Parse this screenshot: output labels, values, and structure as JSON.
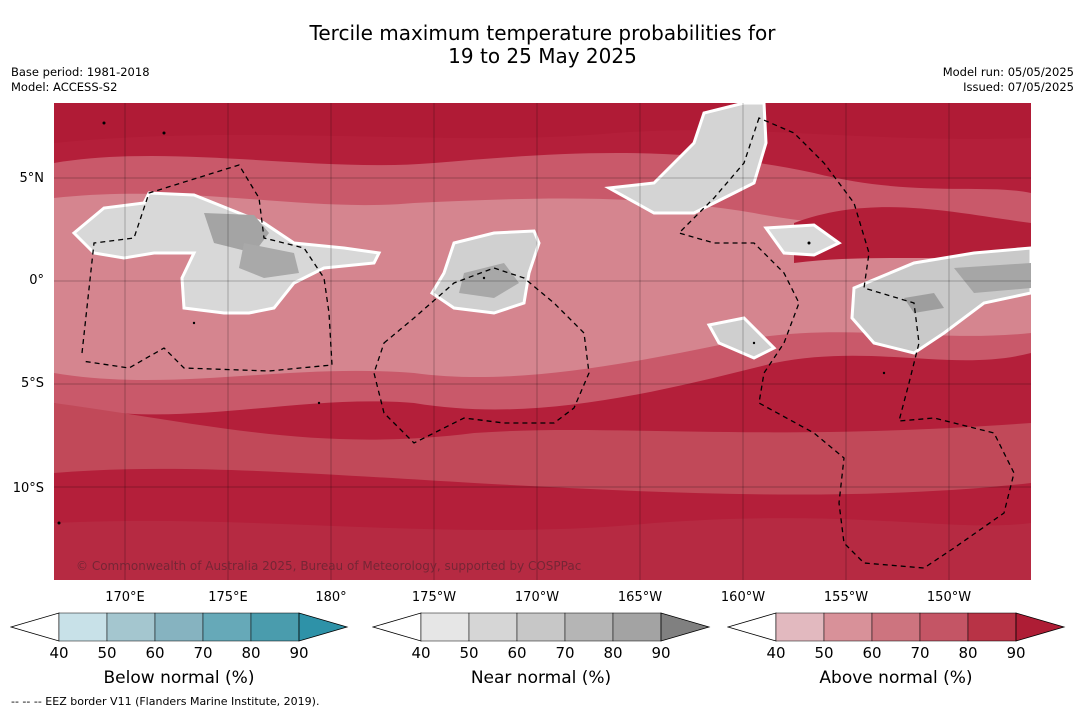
{
  "title_line1": "Tercile maximum temperature probabilities for",
  "title_line2": "19 to 25 May 2025",
  "meta_left": {
    "base_period": "Base period: 1981-2018",
    "model": "Model: ACCESS-S2"
  },
  "meta_right": {
    "model_run": "Model run: 05/05/2025",
    "issued": "Issued: 07/05/2025"
  },
  "map": {
    "latitude_labels": [
      "5°N",
      "0°",
      "5°S",
      "10°S"
    ],
    "longitude_labels": [
      "170°E",
      "175°E",
      "180°",
      "175°W",
      "170°W",
      "165°W",
      "160°W",
      "155°W",
      "150°W"
    ],
    "copyright": "© Commonwealth of Australia 2025, Bureau of Meteorology, supported by COSPPac",
    "background_color": "#b41f3a"
  },
  "colorbars": [
    {
      "label": "Below normal (%)",
      "ticks": [
        "40",
        "50",
        "60",
        "70",
        "80",
        "90"
      ],
      "colors": [
        "#ffffff",
        "#c8e1e8",
        "#a4c6cf",
        "#86b3c0",
        "#66a9b8",
        "#4a9cad",
        "#2e92a8"
      ]
    },
    {
      "label": "Near normal (%)",
      "ticks": [
        "40",
        "50",
        "60",
        "70",
        "80",
        "90"
      ],
      "colors": [
        "#ffffff",
        "#e6e6e6",
        "#d6d6d6",
        "#c7c7c7",
        "#b5b5b5",
        "#a3a3a3",
        "#808080"
      ]
    },
    {
      "label": "Above normal (%)",
      "ticks": [
        "40",
        "50",
        "60",
        "70",
        "80",
        "90"
      ],
      "colors": [
        "#ffffff",
        "#e2b9bf",
        "#d89199",
        "#cd747f",
        "#c45565",
        "#b83346",
        "#ae1d35"
      ]
    }
  ],
  "footer": "-- -- -- EEZ border V11 (Flanders Marine Institute, 2019)."
}
